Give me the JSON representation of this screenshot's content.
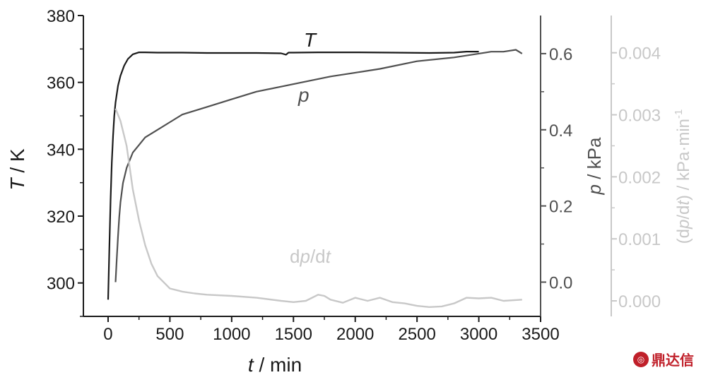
{
  "chart_data": {
    "type": "line",
    "x_axis": {
      "label_var": "t",
      "label_unit": " / min",
      "lim": [
        -200,
        3500
      ],
      "ticks": [
        0,
        500,
        1000,
        1500,
        2000,
        2500,
        3000,
        3500
      ]
    },
    "y_axes": [
      {
        "id": "T",
        "side": "left",
        "label_var": "T",
        "label_unit": " / K",
        "lim": [
          290,
          380
        ],
        "ticks": [
          300,
          320,
          340,
          360,
          380
        ],
        "tick_labels": [
          "300",
          "320",
          "340",
          "360",
          "380"
        ],
        "color": "#1a1a1a"
      },
      {
        "id": "p",
        "side": "right",
        "label_var": "p",
        "label_unit": " / kPa",
        "lim": [
          -0.09,
          0.7
        ],
        "ticks": [
          0.0,
          0.2,
          0.4,
          0.6
        ],
        "tick_labels": [
          "0.0",
          "0.2",
          "0.4",
          "0.6"
        ],
        "color": "#505050"
      },
      {
        "id": "d",
        "side": "right",
        "label_pre": "(d",
        "label_var": "p",
        "label_mid": "/d",
        "label_var2": "t",
        "label_unit": ") / kPa·min",
        "label_sup": "-1",
        "lim": [
          -0.00025,
          0.0046
        ],
        "ticks": [
          0.0,
          0.001,
          0.002,
          0.003,
          0.004
        ],
        "tick_labels": [
          "0.000",
          "0.001",
          "0.002",
          "0.003",
          "0.004"
        ],
        "color": "#c8c8c8"
      }
    ],
    "series": [
      {
        "name": "T",
        "axis": "T",
        "color": "#1a1a1a",
        "label_parts": [
          {
            "text": "T",
            "italic": true
          }
        ],
        "x": [
          0,
          10,
          20,
          30,
          40,
          50,
          60,
          80,
          100,
          130,
          160,
          200,
          250,
          300,
          400,
          600,
          800,
          1000,
          1200,
          1400,
          1440,
          1460,
          1500,
          1700,
          2000,
          2300,
          2600,
          2800,
          2900,
          3000
        ],
        "y": [
          295,
          310,
          325,
          336,
          344,
          350,
          354,
          359,
          362,
          365,
          367,
          368.4,
          369,
          369,
          368.9,
          368.9,
          368.8,
          368.8,
          368.8,
          368.7,
          368.3,
          368.9,
          368.9,
          369,
          369,
          368.9,
          368.8,
          368.9,
          369.2,
          369.2
        ]
      },
      {
        "name": "p",
        "axis": "p",
        "color": "#505050",
        "label_parts": [
          {
            "text": "p",
            "italic": true
          }
        ],
        "x": [
          60,
          70,
          80,
          90,
          100,
          120,
          150,
          200,
          250,
          300,
          400,
          500,
          600,
          800,
          1000,
          1200,
          1500,
          1800,
          2000,
          2200,
          2500,
          2800,
          3000,
          3100,
          3200,
          3300,
          3350
        ],
        "y": [
          0.0,
          0.06,
          0.12,
          0.17,
          0.21,
          0.26,
          0.3,
          0.34,
          0.36,
          0.38,
          0.4,
          0.42,
          0.44,
          0.46,
          0.48,
          0.5,
          0.52,
          0.54,
          0.55,
          0.56,
          0.58,
          0.59,
          0.6,
          0.605,
          0.605,
          0.61,
          0.6
        ]
      },
      {
        "name": "dp/dt",
        "axis": "d",
        "color": "#c8c8c8",
        "label_parts": [
          {
            "text": "d",
            "italic": false
          },
          {
            "text": "p",
            "italic": true
          },
          {
            "text": "/d",
            "italic": false
          },
          {
            "text": "t",
            "italic": true
          }
        ],
        "x": [
          60,
          80,
          100,
          150,
          200,
          250,
          300,
          350,
          400,
          450,
          500,
          600,
          700,
          800,
          1000,
          1200,
          1400,
          1500,
          1600,
          1700,
          1750,
          1800,
          1900,
          2000,
          2100,
          2200,
          2300,
          2400,
          2500,
          2600,
          2700,
          2800,
          2900,
          3000,
          3100,
          3200,
          3350
        ],
        "y": [
          0.0031,
          0.003,
          0.0029,
          0.0025,
          0.0018,
          0.0013,
          0.0009,
          0.0006,
          0.0004,
          0.0003,
          0.0002,
          0.00015,
          0.00012,
          0.0001,
          8e-05,
          5e-05,
          0.0,
          -2e-05,
          0.0,
          0.0001,
          8e-05,
          2e-05,
          -3e-05,
          5e-05,
          0.0,
          5e-05,
          -2e-05,
          -4e-05,
          -8e-05,
          -0.0001,
          -9e-05,
          -4e-05,
          5e-05,
          4e-05,
          5e-05,
          0.0,
          2e-05
        ]
      }
    ]
  },
  "watermark": {
    "text": "鼎达信"
  }
}
